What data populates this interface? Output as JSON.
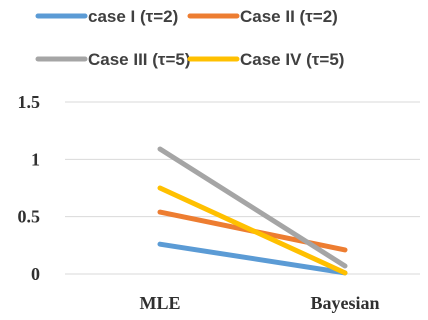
{
  "chart_data": {
    "type": "line",
    "categories": [
      "MLE",
      "Bayesian"
    ],
    "ylim": [
      0,
      1.5
    ],
    "yticks": [
      0,
      0.5,
      1,
      1.5
    ],
    "ytick_labels": [
      "0",
      "0.5",
      "1",
      "1.5"
    ],
    "grid": true,
    "legend_position": "top",
    "series": [
      {
        "name": "case I  (τ=2)",
        "color": "#5b9bd5",
        "values": [
          0.26,
          0.01
        ]
      },
      {
        "name": "Case II (τ=2)",
        "color": "#ed7d31",
        "values": [
          0.54,
          0.21
        ]
      },
      {
        "name": "Case III (τ=5)",
        "color": "#a5a5a5",
        "values": [
          1.09,
          0.07
        ]
      },
      {
        "name": "Case IV (τ=5)",
        "color": "#ffc000",
        "values": [
          0.75,
          0.01
        ]
      }
    ]
  }
}
